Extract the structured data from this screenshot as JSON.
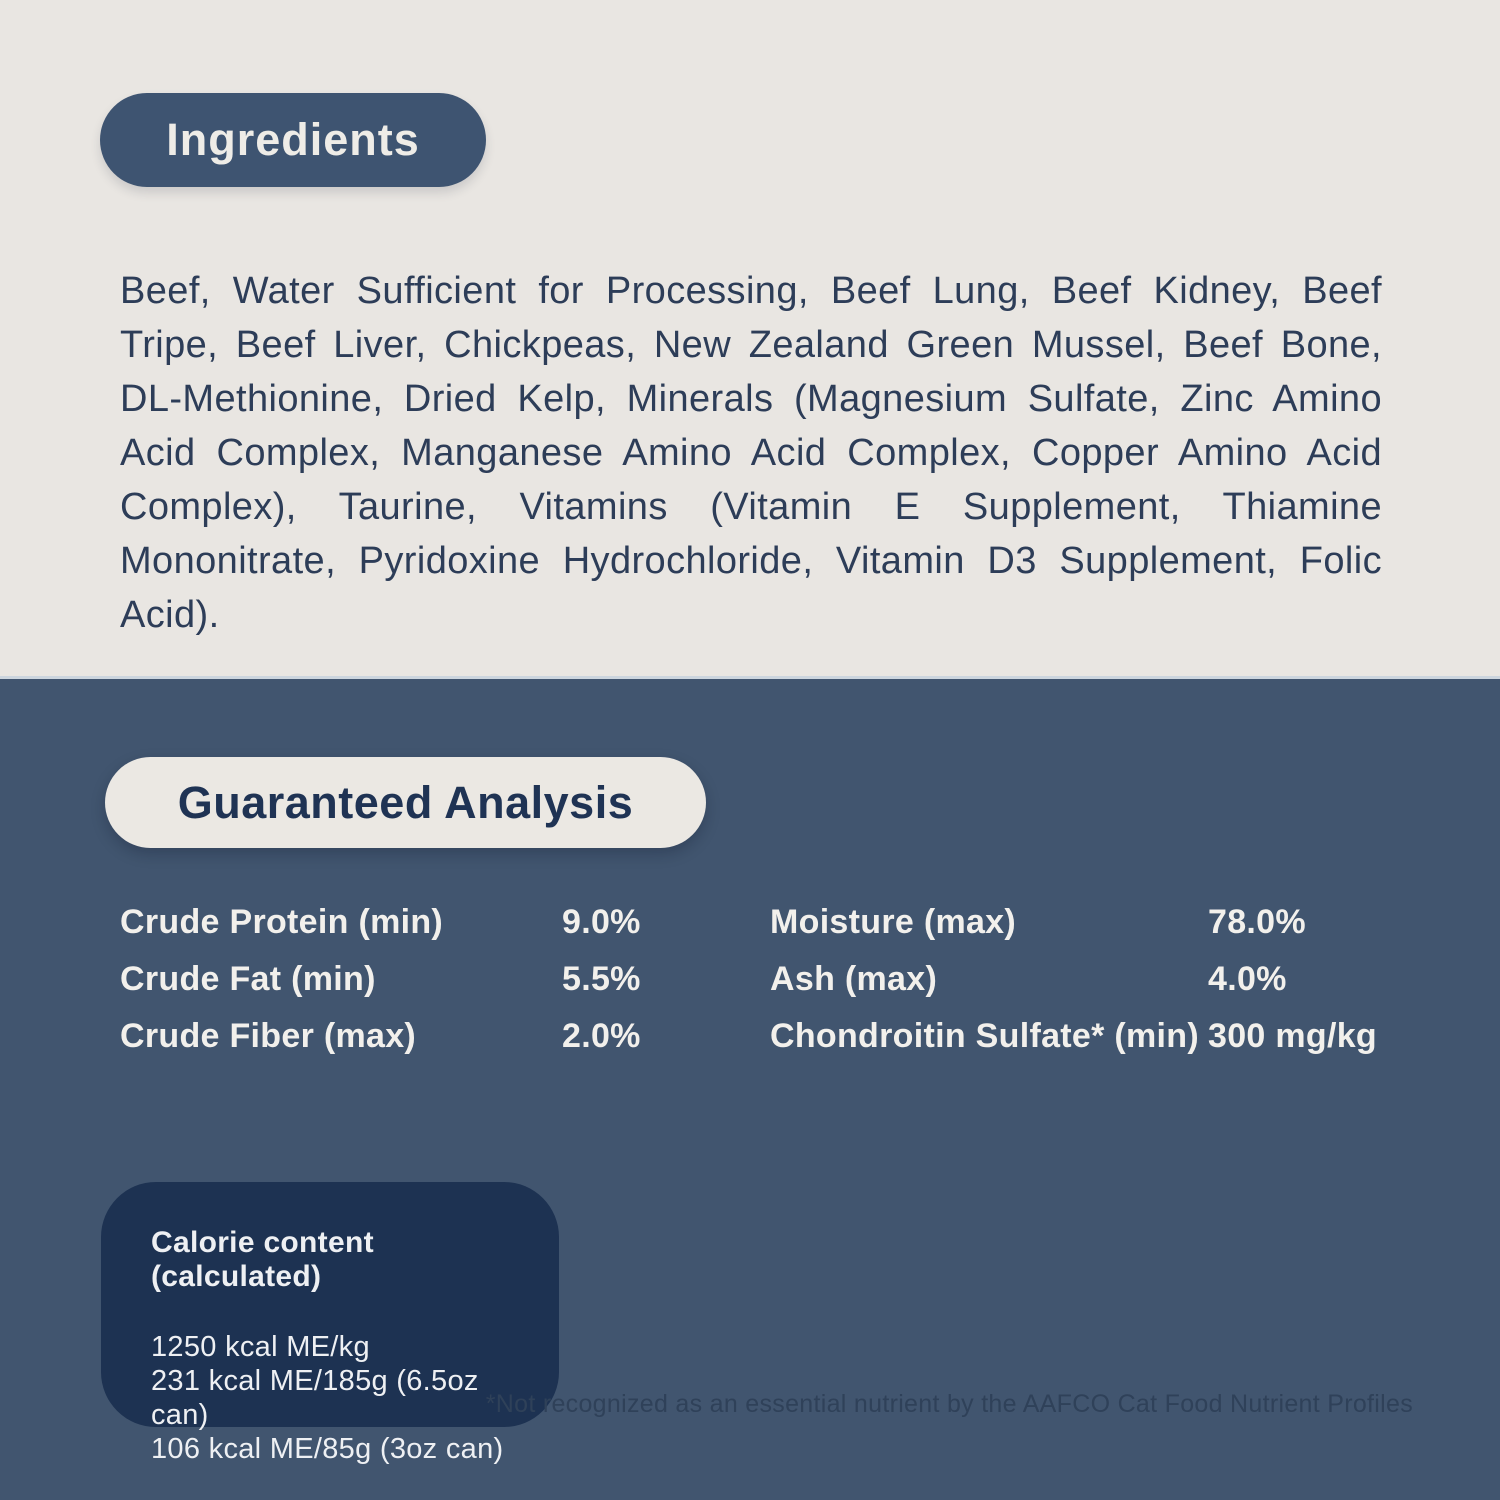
{
  "ingredients": {
    "title": "Ingredients",
    "body": "Beef, Water Sufficient for Processing, Beef Lung, Beef Kidney, Beef Tripe, Beef Liver, Chickpeas, New Zealand Green Mussel, Beef Bone, DL-Methionine, Dried Kelp, Minerals (Magnesium Sulfate, Zinc Amino Acid Complex, Manganese Amino Acid Complex, Copper Amino Acid Complex), Taurine, Vitamins (Vitamin E Supplement, Thiamine Mononitrate, Pyridoxine Hydrochloride, Vitamin D3 Supplement, Folic Acid)."
  },
  "analysis": {
    "title": "Guaranteed Analysis",
    "rows": [
      {
        "label": "Crude Protein (min)",
        "value": "9.0%"
      },
      {
        "label": "Crude Fat (min)",
        "value": "5.5%"
      },
      {
        "label": "Crude Fiber (max)",
        "value": "2.0%"
      },
      {
        "label": "Moisture (max)",
        "value": "78.0%"
      },
      {
        "label": "Ash (max)",
        "value": "4.0%"
      },
      {
        "label": "Chondroitin Sulfate* (min)",
        "value": "300 mg/kg"
      }
    ]
  },
  "calories": {
    "title": "Calorie content (calculated)",
    "lines": [
      "1250 kcal ME/kg",
      "231 kcal ME/185g (6.5oz can)",
      "106 kcal ME/85g (3oz can)"
    ]
  },
  "footnote": "*Not recognized as an essential nutrient by the AAFCO Cat Food Nutrient Profiles",
  "colors": {
    "light_bg": "#e9e6e2",
    "dark_bg": "#41556f",
    "navy_text": "#2d3d58",
    "title_pill_navy": "#3e5471",
    "title_pill_cream": "#ebe8e3",
    "calorie_box_bg": "#1d3252",
    "light_text": "#f2f0ec"
  }
}
